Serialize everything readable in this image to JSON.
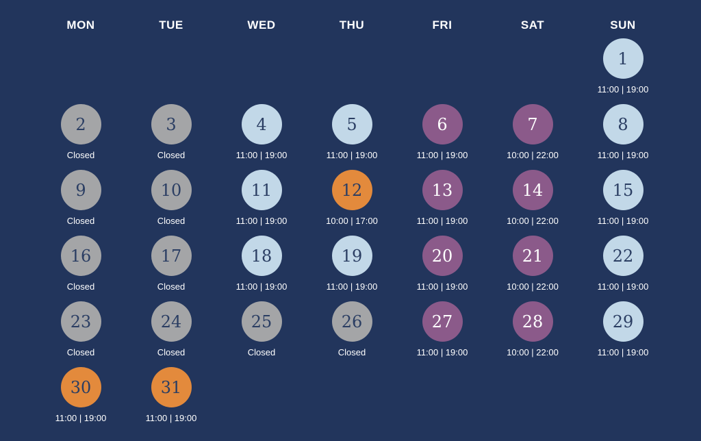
{
  "weekdays": [
    "MON",
    "TUE",
    "WED",
    "THU",
    "FRI",
    "SAT",
    "SUN"
  ],
  "first_weekday_index": 6,
  "colors": {
    "background": "#22355c",
    "closed": "#a4a5a7",
    "regular": "#c2d8e8",
    "extended": "#8b5a8a",
    "special": "#e38a3c",
    "text_dark": "#2b3e63",
    "text_light": "#ffffff"
  },
  "days": [
    {
      "day": "1",
      "hours": "11:00 | 19:00",
      "status": "regular"
    },
    {
      "day": "2",
      "hours": "Closed",
      "status": "closed"
    },
    {
      "day": "3",
      "hours": "Closed",
      "status": "closed"
    },
    {
      "day": "4",
      "hours": "11:00 | 19:00",
      "status": "regular"
    },
    {
      "day": "5",
      "hours": "11:00 | 19:00",
      "status": "regular"
    },
    {
      "day": "6",
      "hours": "11:00 | 19:00",
      "status": "extended"
    },
    {
      "day": "7",
      "hours": "10:00 | 22:00",
      "status": "extended"
    },
    {
      "day": "8",
      "hours": "11:00 | 19:00",
      "status": "regular"
    },
    {
      "day": "9",
      "hours": "Closed",
      "status": "closed"
    },
    {
      "day": "10",
      "hours": "Closed",
      "status": "closed"
    },
    {
      "day": "11",
      "hours": "11:00 | 19:00",
      "status": "regular"
    },
    {
      "day": "12",
      "hours": "10:00 | 17:00",
      "status": "special"
    },
    {
      "day": "13",
      "hours": "11:00 | 19:00",
      "status": "extended"
    },
    {
      "day": "14",
      "hours": "10:00 | 22:00",
      "status": "extended"
    },
    {
      "day": "15",
      "hours": "11:00 | 19:00",
      "status": "regular"
    },
    {
      "day": "16",
      "hours": "Closed",
      "status": "closed"
    },
    {
      "day": "17",
      "hours": "Closed",
      "status": "closed"
    },
    {
      "day": "18",
      "hours": "11:00 | 19:00",
      "status": "regular"
    },
    {
      "day": "19",
      "hours": "11:00 | 19:00",
      "status": "regular"
    },
    {
      "day": "20",
      "hours": "11:00 | 19:00",
      "status": "extended"
    },
    {
      "day": "21",
      "hours": "10:00 | 22:00",
      "status": "extended"
    },
    {
      "day": "22",
      "hours": "11:00 | 19:00",
      "status": "regular"
    },
    {
      "day": "23",
      "hours": "Closed",
      "status": "closed"
    },
    {
      "day": "24",
      "hours": "Closed",
      "status": "closed"
    },
    {
      "day": "25",
      "hours": "Closed",
      "status": "closed"
    },
    {
      "day": "26",
      "hours": "Closed",
      "status": "closed"
    },
    {
      "day": "27",
      "hours": "11:00 | 19:00",
      "status": "extended"
    },
    {
      "day": "28",
      "hours": "10:00 | 22:00",
      "status": "extended"
    },
    {
      "day": "29",
      "hours": "11:00 | 19:00",
      "status": "regular"
    },
    {
      "day": "30",
      "hours": "11:00 | 19:00",
      "status": "special"
    },
    {
      "day": "31",
      "hours": "11:00 | 19:00",
      "status": "special"
    }
  ]
}
